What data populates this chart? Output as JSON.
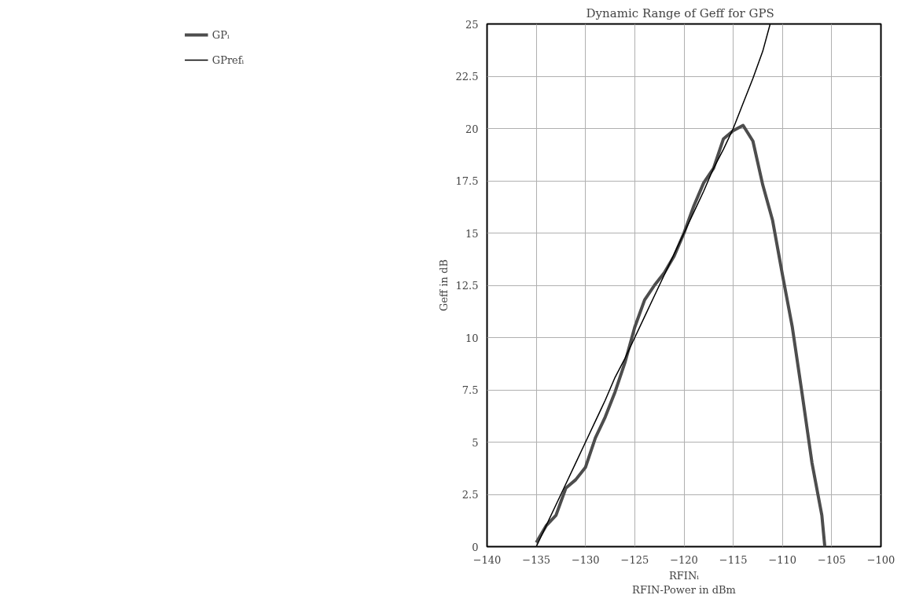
{
  "chart_data": {
    "type": "line",
    "title": "Dynamic Range of  Geff for  GPS",
    "xlabel": "RFINᵢ\nRFIN-Power in dBm",
    "ylabel": "Geff in dB",
    "xlim": [
      -140,
      -100
    ],
    "xticks": [
      -140,
      -135,
      -130,
      -125,
      -120,
      -115,
      -110,
      -105,
      -100
    ],
    "ylim": [
      0,
      25
    ],
    "yticks": [
      0,
      2.5,
      5,
      7.5,
      10,
      12.5,
      15,
      17.5,
      20,
      22.5,
      25
    ],
    "grid": true,
    "legend": "left",
    "marker": "none",
    "series": [
      {
        "name": "GPᵢ",
        "color": "#4d4d4d",
        "x": [
          -135,
          -134,
          -133,
          -132,
          -131,
          -130,
          -129,
          -128,
          -127,
          -126,
          -125,
          -124,
          -123,
          -122,
          -121,
          -120,
          -119,
          -118,
          -117,
          -116,
          -115,
          -114,
          -113,
          -112,
          -111,
          -110,
          -109,
          -108,
          -107,
          -106,
          -105.7
        ],
        "values": [
          0.2,
          1.0,
          1.5,
          2.8,
          3.2,
          3.8,
          5.2,
          6.2,
          7.4,
          8.8,
          10.5,
          11.8,
          12.5,
          13.1,
          13.9,
          15.0,
          16.3,
          17.4,
          18.1,
          19.5,
          19.9,
          20.15,
          19.4,
          17.3,
          15.6,
          13.0,
          10.5,
          7.3,
          4.0,
          1.5,
          0
        ]
      },
      {
        "name": "GPrefᵢ",
        "color": "#000000",
        "x": [
          -135,
          -134,
          -133,
          -132,
          -131,
          -130,
          -129,
          -128,
          -127,
          -126,
          -125,
          -124,
          -123,
          -122,
          -121,
          -120,
          -119,
          -118,
          -117,
          -116,
          -115,
          -114,
          -113,
          -112,
          -111.25
        ],
        "values": [
          0,
          1,
          2,
          3,
          4,
          5,
          6,
          7,
          8.1,
          9,
          10,
          11,
          12,
          13,
          14,
          15,
          16,
          17,
          18.1,
          19,
          20,
          21.2,
          22.4,
          23.7,
          25
        ]
      }
    ]
  }
}
